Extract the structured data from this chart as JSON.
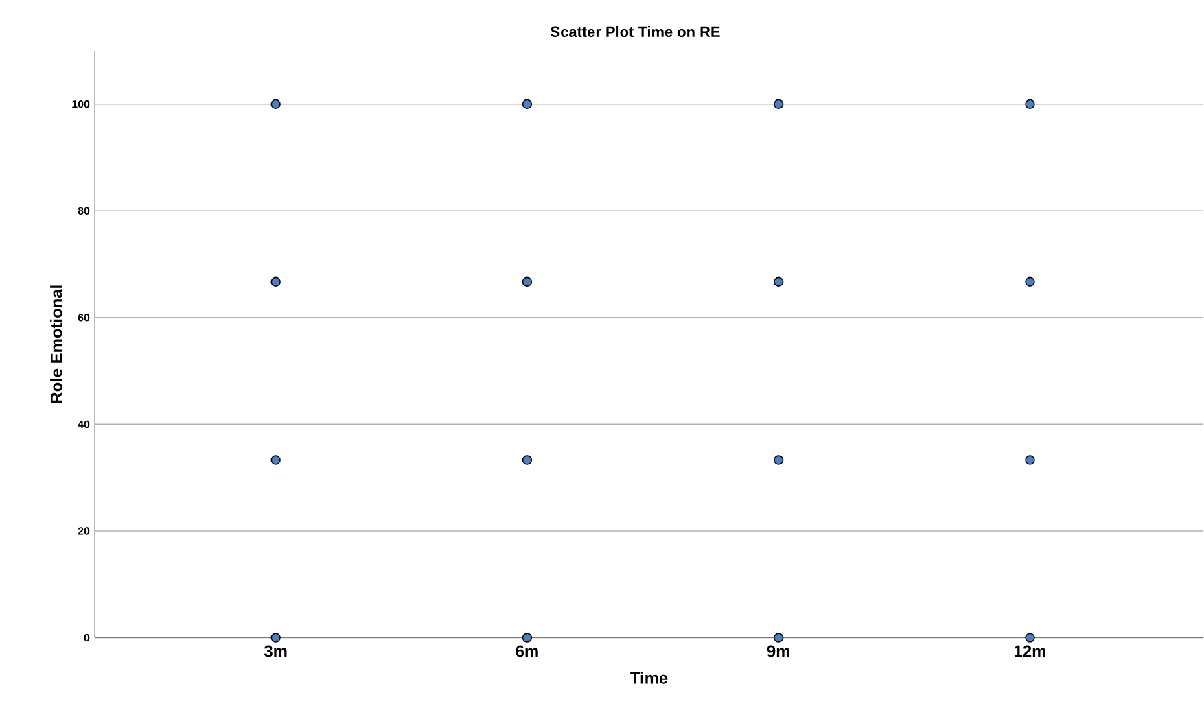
{
  "chart_data": {
    "type": "scatter",
    "title": "Scatter Plot Time on RE",
    "xlabel": "Time",
    "ylabel": "Role Emotional",
    "categories": [
      "3m",
      "6m",
      "9m",
      "12m"
    ],
    "series": [
      {
        "color": "#4a7fc1",
        "values": [
          0,
          0,
          0,
          0
        ]
      },
      {
        "color": "#4a7fc1",
        "values": [
          33.3,
          33.3,
          33.3,
          33.3
        ]
      },
      {
        "color": "#4a7fc1",
        "values": [
          66.7,
          66.7,
          66.7,
          66.7
        ]
      },
      {
        "color": "#4a7fc1",
        "values": [
          100,
          100,
          100,
          100
        ]
      }
    ],
    "ylim": [
      0,
      110
    ],
    "yticks": [
      0,
      20,
      40,
      60,
      80,
      100
    ],
    "grid": "y",
    "marker": "circle"
  }
}
